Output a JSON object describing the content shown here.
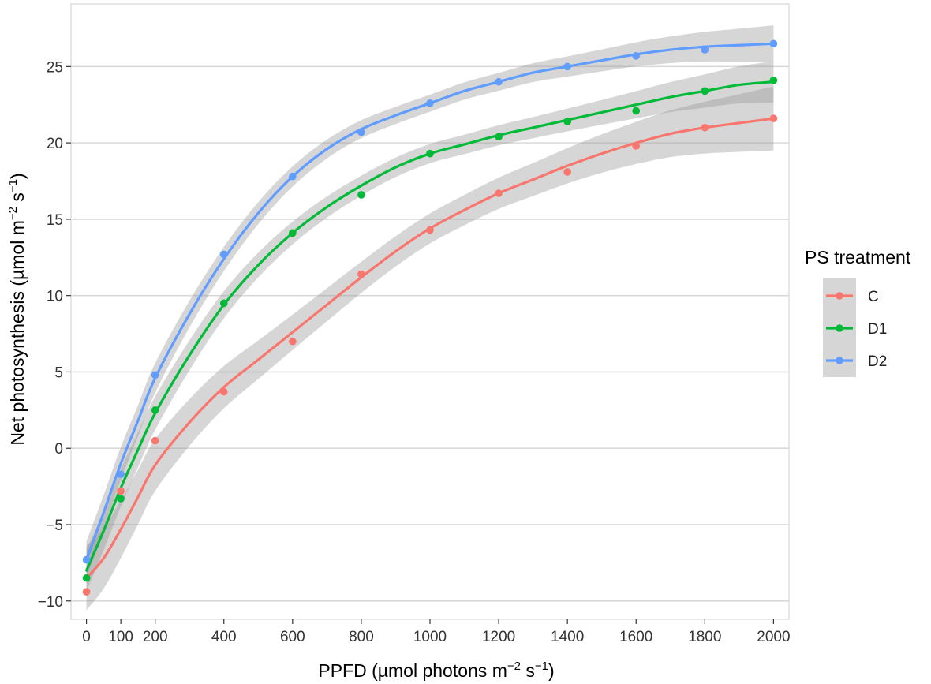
{
  "chart_data": {
    "type": "line",
    "title": "",
    "xlabel_main": "PPFD (µmol photons m",
    "xlabel_sup1": "−2",
    "xlabel_mid": " s",
    "xlabel_sup2": "−1",
    "xlabel_end": ")",
    "ylabel_main": "Net photosynthesis (µmol  m",
    "ylabel_sup1": "−2",
    "ylabel_mid": " s",
    "ylabel_sup2": "−1",
    "ylabel_end": ")",
    "xlim": [
      -45,
      2045
    ],
    "ylim": [
      -11.2,
      29.1
    ],
    "x_ticks": [
      0,
      100,
      200,
      400,
      600,
      800,
      1000,
      1200,
      1400,
      1600,
      1800,
      2000
    ],
    "y_ticks": [
      -10,
      -5,
      0,
      5,
      10,
      15,
      20,
      25
    ],
    "y_tick_labels": [
      "−10",
      "−5",
      "0",
      "5",
      "10",
      "15",
      "20",
      "25"
    ],
    "grid": true,
    "legend": {
      "title": "PS treatment",
      "position": "right"
    },
    "x": [
      0,
      100,
      200,
      400,
      600,
      800,
      1000,
      1200,
      1400,
      1600,
      1800,
      2000
    ],
    "series": [
      {
        "name": "C",
        "color": "#F8766D",
        "values": [
          -9.4,
          -2.8,
          0.5,
          3.7,
          7.0,
          11.4,
          14.3,
          16.7,
          18.1,
          19.8,
          21.0,
          21.6
        ],
        "fit_x": [
          0,
          50,
          100,
          150,
          200,
          300,
          400,
          500,
          600,
          700,
          800,
          900,
          1000,
          1100,
          1200,
          1300,
          1400,
          1500,
          1600,
          1700,
          1800,
          1900,
          2000
        ],
        "fit": [
          -8.5,
          -7.2,
          -5.3,
          -3.2,
          -1.1,
          1.7,
          4.0,
          5.8,
          7.6,
          9.4,
          11.2,
          12.9,
          14.4,
          15.6,
          16.7,
          17.6,
          18.5,
          19.3,
          20.0,
          20.6,
          21.0,
          21.3,
          21.6
        ],
        "band": 1.4
      },
      {
        "name": "D1",
        "color": "#00BA38",
        "values": [
          -8.5,
          -3.3,
          2.5,
          9.5,
          14.1,
          16.6,
          19.3,
          20.4,
          21.4,
          22.1,
          23.4,
          24.1
        ],
        "fit_x": [
          0,
          50,
          100,
          150,
          200,
          300,
          400,
          500,
          600,
          700,
          800,
          900,
          1000,
          1100,
          1200,
          1300,
          1400,
          1500,
          1600,
          1700,
          1800,
          1900,
          2000
        ],
        "fit": [
          -8.0,
          -5.4,
          -2.6,
          -0.1,
          2.3,
          6.1,
          9.4,
          12.0,
          14.1,
          15.8,
          17.2,
          18.4,
          19.3,
          19.9,
          20.5,
          21.0,
          21.5,
          22.0,
          22.5,
          23.0,
          23.4,
          23.8,
          24.0
        ],
        "band": 0.9
      },
      {
        "name": "D2",
        "color": "#619CFF",
        "values": [
          -7.3,
          -1.7,
          4.8,
          12.7,
          17.8,
          20.7,
          22.6,
          24.0,
          25.0,
          25.7,
          26.1,
          26.5
        ],
        "fit_x": [
          0,
          50,
          100,
          150,
          200,
          300,
          400,
          500,
          600,
          700,
          800,
          900,
          1000,
          1100,
          1200,
          1300,
          1400,
          1500,
          1600,
          1700,
          1800,
          1900,
          2000
        ],
        "fit": [
          -7.3,
          -4.2,
          -1.0,
          1.8,
          4.6,
          8.8,
          12.4,
          15.4,
          17.8,
          19.6,
          20.9,
          21.8,
          22.6,
          23.4,
          24.0,
          24.6,
          25.0,
          25.4,
          25.8,
          26.1,
          26.3,
          26.4,
          26.5
        ],
        "band": 0.8
      }
    ]
  }
}
